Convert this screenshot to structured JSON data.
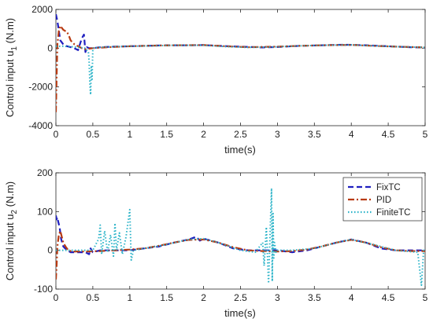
{
  "chart_data": [
    {
      "type": "line",
      "xlabel": "time(s)",
      "ylabel": "Control input u",
      "ylabel_sub": "1",
      "ylabel_unit": " (N.m)",
      "xlim": [
        0,
        5
      ],
      "ylim": [
        -4000,
        2000
      ],
      "xticks": [
        "0",
        "0.5",
        "1",
        "1.5",
        "2",
        "2.5",
        "3",
        "3.5",
        "4",
        "4.5",
        "5"
      ],
      "yticks": [
        "-4000",
        "-2000",
        "0",
        "2000"
      ],
      "series": [
        {
          "name": "FixTC",
          "color": "#1f1fbf",
          "style": "dashed",
          "x": [
            0,
            0.02,
            0.04,
            0.06,
            0.1,
            0.15,
            0.2,
            0.25,
            0.3,
            0.35,
            0.38,
            0.4,
            0.42,
            0.45,
            0.5,
            0.6,
            0.8,
            1.0,
            1.2,
            1.5,
            1.8,
            2.0,
            2.2,
            2.5,
            2.8,
            3.0,
            3.3,
            3.6,
            3.9,
            4.2,
            4.5,
            4.8,
            5.0
          ],
          "y": [
            1750,
            1400,
            900,
            400,
            200,
            100,
            50,
            0,
            -100,
            500,
            700,
            -200,
            50,
            0,
            0,
            50,
            80,
            100,
            120,
            150,
            150,
            160,
            120,
            80,
            40,
            60,
            120,
            150,
            180,
            150,
            100,
            50,
            30
          ]
        },
        {
          "name": "PID",
          "color": "#b83a12",
          "style": "dashdot",
          "x": [
            0,
            0.01,
            0.02,
            0.04,
            0.06,
            0.08,
            0.1,
            0.12,
            0.15,
            0.18,
            0.2,
            0.25,
            0.3,
            0.35,
            0.4,
            0.5,
            0.7,
            1.0,
            1.3,
            1.6,
            2.0,
            2.3,
            2.6,
            3.0,
            3.3,
            3.6,
            4.0,
            4.3,
            4.6,
            5.0
          ],
          "y": [
            -3300,
            -1500,
            200,
            900,
            1150,
            1050,
            950,
            900,
            850,
            600,
            400,
            200,
            100,
            0,
            -50,
            0,
            50,
            100,
            130,
            150,
            160,
            100,
            50,
            80,
            120,
            150,
            170,
            120,
            80,
            40
          ]
        },
        {
          "name": "FiniteTC",
          "color": "#2ab3c8",
          "style": "dotted",
          "x": [
            0,
            0.1,
            0.2,
            0.3,
            0.4,
            0.44,
            0.45,
            0.46,
            0.47,
            0.48,
            0.49,
            0.5,
            0.6,
            0.8,
            1.0,
            1.3,
            1.6,
            2.0,
            2.3,
            2.6,
            3.0,
            3.3,
            3.6,
            4.0,
            4.3,
            4.6,
            5.0
          ],
          "y": [
            100,
            100,
            80,
            50,
            0,
            -200,
            -700,
            -1800,
            -2400,
            -900,
            -1600,
            0,
            50,
            80,
            100,
            120,
            150,
            150,
            80,
            40,
            70,
            120,
            150,
            170,
            120,
            80,
            40
          ]
        }
      ]
    },
    {
      "type": "line",
      "xlabel": "time(s)",
      "ylabel": "Control input u",
      "ylabel_sub": "2",
      "ylabel_unit": " (N.m)",
      "xlim": [
        0,
        5
      ],
      "ylim": [
        -100,
        200
      ],
      "xticks": [
        "0",
        "0.5",
        "1",
        "1.5",
        "2",
        "2.5",
        "3",
        "3.5",
        "4",
        "4.5",
        "5"
      ],
      "yticks": [
        "-100",
        "0",
        "100",
        "200"
      ],
      "legend": {
        "placement": "top-right",
        "entries": [
          "FixTC",
          "PID",
          "FiniteTC"
        ]
      },
      "series": [
        {
          "name": "FixTC",
          "color": "#1f1fbf",
          "style": "dashed",
          "x": [
            0,
            0.01,
            0.02,
            0.03,
            0.05,
            0.07,
            0.1,
            0.15,
            0.2,
            0.3,
            0.4,
            0.45,
            0.47,
            0.5,
            0.6,
            0.8,
            1.0,
            1.2,
            1.4,
            1.6,
            1.8,
            1.9,
            1.95,
            2.0,
            2.2,
            2.4,
            2.6,
            2.8,
            3.0,
            3.2,
            3.4,
            3.6,
            3.8,
            4.0,
            4.2,
            4.4,
            4.6,
            4.8,
            5.0
          ],
          "y": [
            90,
            80,
            85,
            75,
            60,
            30,
            10,
            0,
            -5,
            -5,
            -5,
            -10,
            5,
            -5,
            0,
            0,
            0,
            5,
            10,
            20,
            28,
            35,
            25,
            30,
            20,
            5,
            0,
            0,
            0,
            -5,
            0,
            10,
            20,
            28,
            20,
            5,
            0,
            0,
            0
          ]
        },
        {
          "name": "PID",
          "color": "#b83a12",
          "style": "dashdot",
          "x": [
            0,
            0.01,
            0.02,
            0.04,
            0.06,
            0.08,
            0.1,
            0.13,
            0.16,
            0.2,
            0.25,
            0.3,
            0.4,
            0.6,
            0.8,
            1.0,
            1.2,
            1.4,
            1.6,
            1.8,
            2.0,
            2.2,
            2.4,
            2.6,
            2.8,
            3.0,
            3.2,
            3.4,
            3.6,
            3.8,
            4.0,
            4.2,
            4.4,
            4.6,
            4.8,
            5.0
          ],
          "y": [
            -75,
            -40,
            10,
            40,
            50,
            35,
            20,
            10,
            2,
            -2,
            -3,
            -3,
            -3,
            -2,
            0,
            2,
            5,
            12,
            20,
            27,
            28,
            20,
            8,
            0,
            -2,
            -3,
            -2,
            2,
            10,
            20,
            27,
            20,
            8,
            0,
            -2,
            -2
          ]
        },
        {
          "name": "FiniteTC",
          "color": "#2ab3c8",
          "style": "dotted",
          "x": [
            0,
            0.3,
            0.5,
            0.58,
            0.6,
            0.62,
            0.66,
            0.7,
            0.74,
            0.78,
            0.8,
            0.82,
            0.86,
            0.9,
            0.95,
            1.0,
            1.02,
            1.05,
            1.2,
            1.5,
            1.8,
            2.0,
            2.2,
            2.5,
            2.7,
            2.8,
            2.82,
            2.85,
            2.88,
            2.9,
            2.92,
            2.93,
            2.94,
            2.95,
            2.96,
            2.98,
            3.0,
            3.2,
            3.5,
            3.8,
            4.0,
            4.3,
            4.6,
            4.9,
            4.95,
            4.98,
            5.0
          ],
          "y": [
            0,
            0,
            0,
            30,
            65,
            -10,
            50,
            -5,
            40,
            -15,
            70,
            0,
            45,
            -10,
            35,
            105,
            -25,
            0,
            5,
            15,
            28,
            30,
            20,
            0,
            -5,
            20,
            -40,
            60,
            -85,
            40,
            160,
            -80,
            95,
            -20,
            20,
            -5,
            0,
            0,
            5,
            20,
            28,
            15,
            0,
            -5,
            -90,
            0,
            -5
          ]
        }
      ]
    }
  ]
}
